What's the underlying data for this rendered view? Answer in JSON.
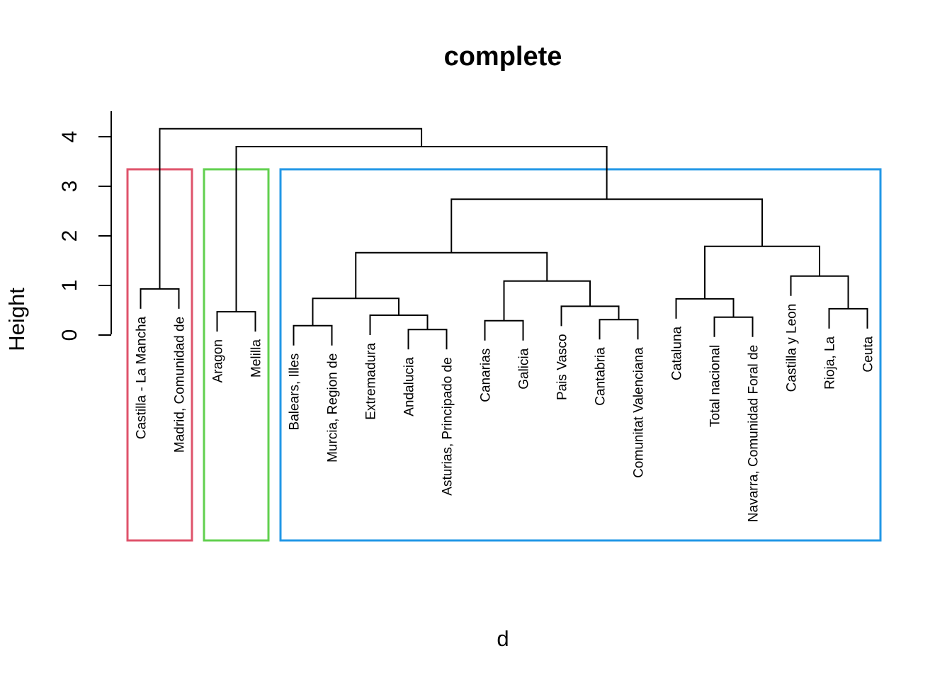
{
  "figure": {
    "title": "complete",
    "xlabel": "d",
    "ylabel": "Height"
  },
  "chart_data": {
    "type": "dendrogram",
    "title": "complete",
    "xlabel": "d",
    "ylabel": "Height",
    "yticks": [
      "0",
      "1",
      "2",
      "3",
      "4"
    ],
    "ylim": [
      0,
      4.5
    ],
    "grid": false,
    "line_color": "#000000",
    "background": "#ffffff",
    "hang": 0.4,
    "leaves": [
      "Castilla - La Mancha",
      "Madrid, Comunidad de",
      "Aragon",
      "Melilla",
      "Balears, Illes",
      "Murcia, Region de",
      "Extremadura",
      "Andalucia",
      "Asturias, Principado de",
      "Canarias",
      "Galicia",
      "Pais Vasco",
      "Cantabria",
      "Comunitat Valenciana",
      "Cataluna",
      "Total nacional",
      "Navarra, Comunidad Foral de",
      "Castilla y Leon",
      "Rioja, La",
      "Ceuta"
    ],
    "tree": {
      "h": 4.16,
      "c": [
        {
          "h": 0.93,
          "c": [
            0,
            1
          ]
        },
        {
          "h": 3.8,
          "c": [
            {
              "h": 0.47,
              "c": [
                2,
                3
              ]
            },
            {
              "h": 2.74,
              "c": [
                {
                  "h": 1.66,
                  "c": [
                    {
                      "h": 0.74,
                      "c": [
                        {
                          "h": 0.19,
                          "c": [
                            4,
                            5
                          ]
                        },
                        {
                          "h": 0.4,
                          "c": [
                            6,
                            {
                              "h": 0.11,
                              "c": [
                                7,
                                8
                              ]
                            }
                          ]
                        }
                      ]
                    },
                    {
                      "h": 1.09,
                      "c": [
                        {
                          "h": 0.29,
                          "c": [
                            9,
                            10
                          ]
                        },
                        {
                          "h": 0.58,
                          "c": [
                            11,
                            {
                              "h": 0.31,
                              "c": [
                                12,
                                13
                              ]
                            }
                          ]
                        }
                      ]
                    }
                  ]
                },
                {
                  "h": 1.79,
                  "c": [
                    {
                      "h": 0.73,
                      "c": [
                        14,
                        {
                          "h": 0.36,
                          "c": [
                            15,
                            16
                          ]
                        }
                      ]
                    },
                    {
                      "h": 1.19,
                      "c": [
                        17,
                        {
                          "h": 0.53,
                          "c": [
                            18,
                            19
                          ]
                        }
                      ]
                    }
                  ]
                }
              ]
            }
          ]
        }
      ]
    },
    "clusters": [
      {
        "id": 1,
        "first_leaf": 0,
        "last_leaf": 1,
        "border_color": "#DF536B"
      },
      {
        "id": 2,
        "first_leaf": 2,
        "last_leaf": 3,
        "border_color": "#61D04F"
      },
      {
        "id": 3,
        "first_leaf": 4,
        "last_leaf": 19,
        "border_color": "#2297E6"
      }
    ]
  }
}
